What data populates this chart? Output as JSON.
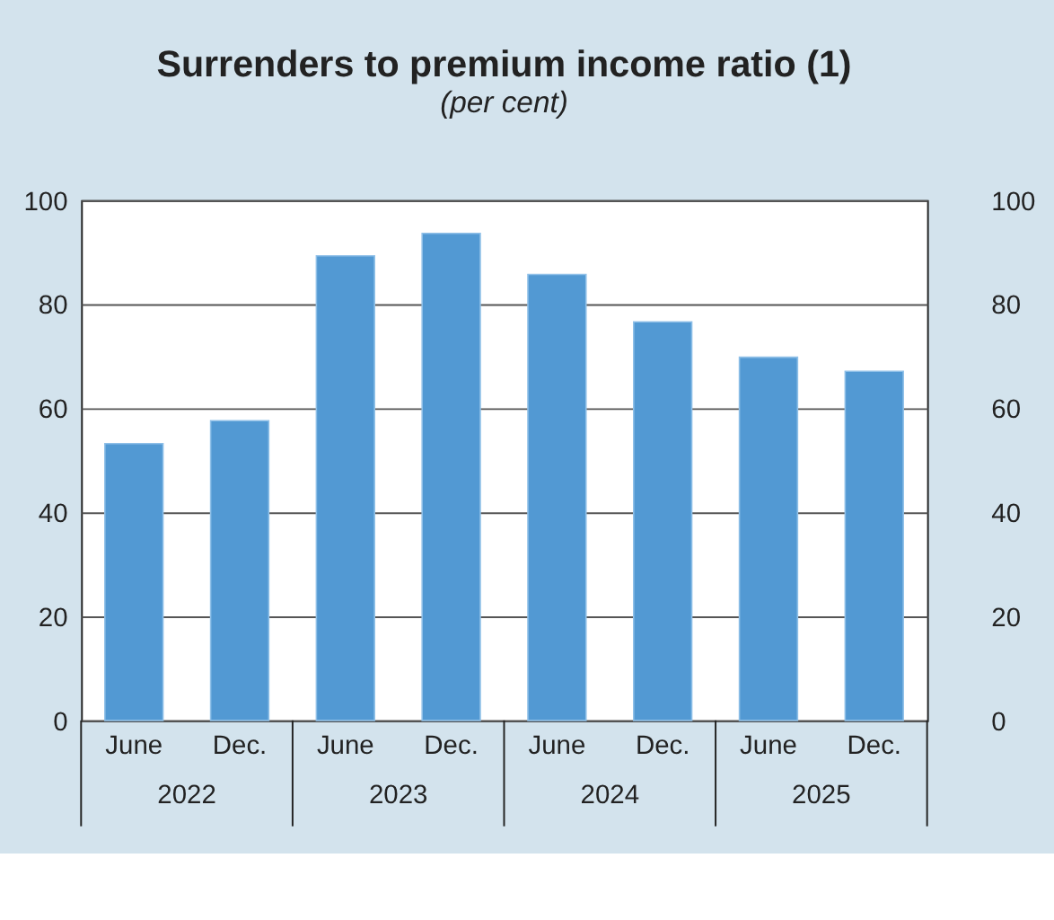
{
  "chart_data": {
    "type": "bar",
    "title": "Surrenders to premium income ratio (1)",
    "subtitle": "(per cent)",
    "categories": [
      "June",
      "Dec.",
      "June",
      "Dec.",
      "June",
      "Dec.",
      "June",
      "Dec."
    ],
    "values": [
      53.2,
      57.6,
      89.3,
      93.6,
      85.7,
      76.6,
      69.8,
      67.1
    ],
    "color": "#5299d3",
    "ylim": [
      0,
      100
    ],
    "yticks": [
      0,
      20,
      40,
      60,
      80,
      100
    ],
    "y2lim": [
      0,
      100
    ],
    "y2ticks": [
      0,
      20,
      40,
      60,
      80,
      100
    ],
    "grid": "y",
    "annotations": [
      "2022",
      "2023",
      "2024",
      "2025"
    ]
  }
}
